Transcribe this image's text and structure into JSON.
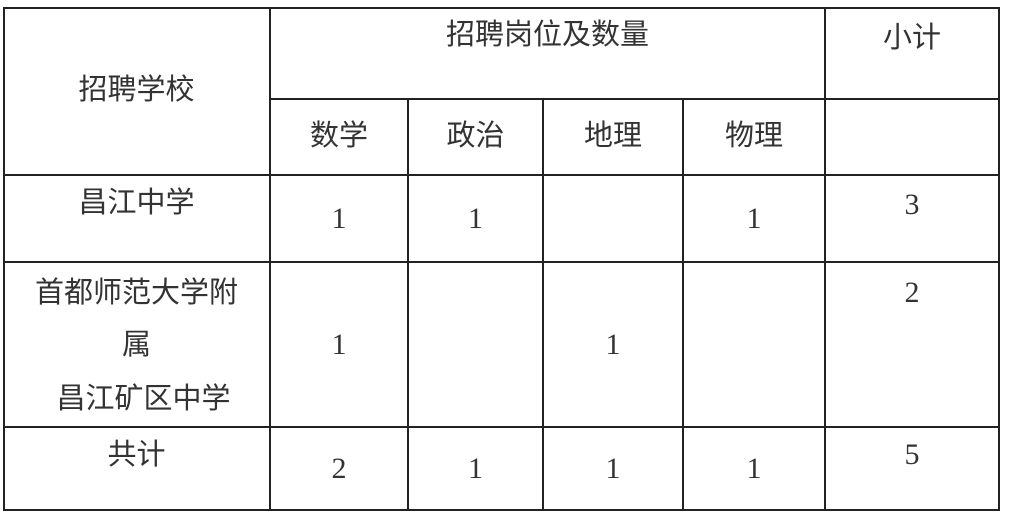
{
  "table": {
    "header": {
      "school": "招聘学校",
      "positions": "招聘岗位及数量",
      "subtotal": "小计",
      "subjects": [
        "数学",
        "政治",
        "地理",
        "物理"
      ]
    },
    "rows": [
      {
        "school": [
          "昌江中学"
        ],
        "values": [
          "1",
          "1",
          "",
          "1"
        ],
        "subtotal": "3"
      },
      {
        "school": [
          "首都师范大学附",
          "属",
          "昌江矿区中学"
        ],
        "values": [
          "1",
          "",
          "1",
          ""
        ],
        "subtotal": "2"
      },
      {
        "school": [
          "共计"
        ],
        "values": [
          "2",
          "1",
          "1",
          "1"
        ],
        "subtotal": "5"
      }
    ]
  }
}
